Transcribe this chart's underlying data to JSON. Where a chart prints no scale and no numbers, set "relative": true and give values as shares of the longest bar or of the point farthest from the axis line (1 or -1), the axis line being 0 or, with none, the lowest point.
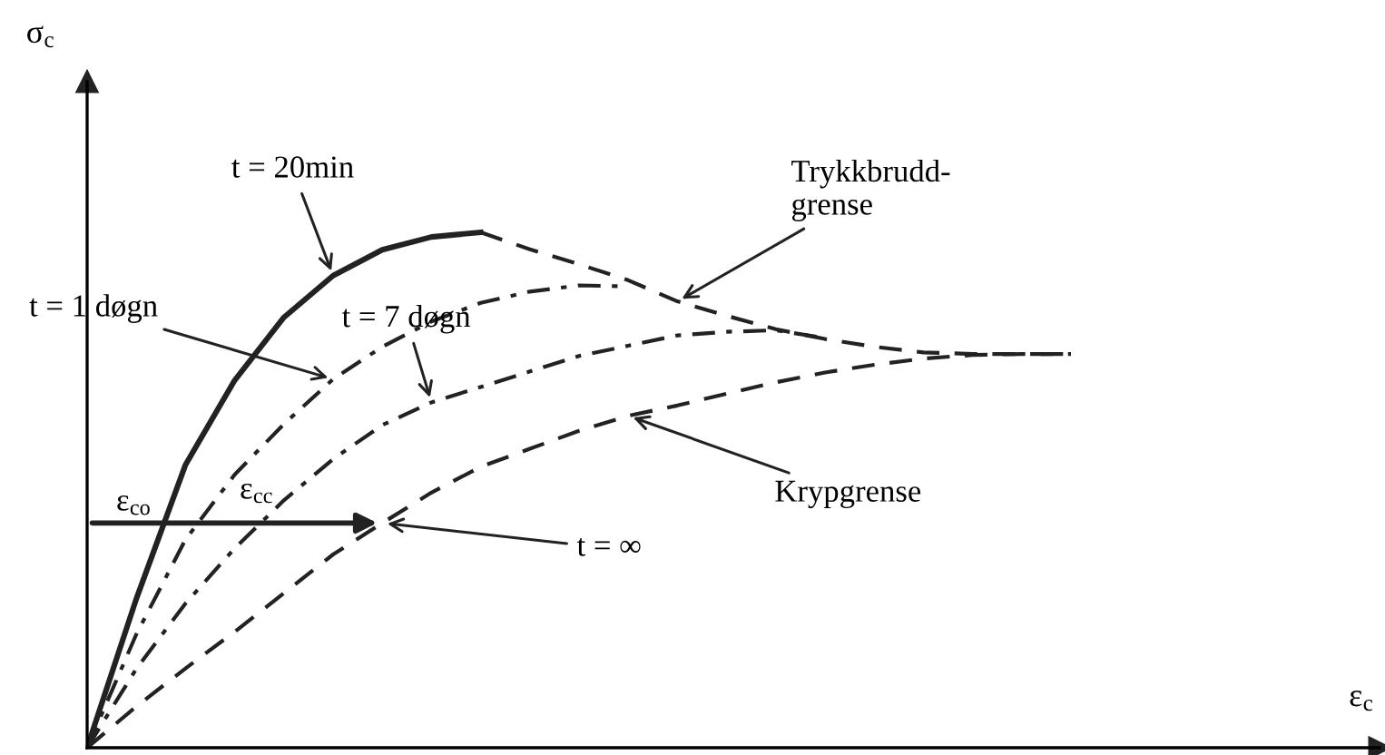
{
  "chart_data": {
    "type": "line",
    "relative": true,
    "marker": "none",
    "categories": [
      null,
      null,
      null,
      null,
      null,
      null,
      null,
      null,
      null,
      null,
      null,
      null,
      null,
      null,
      null,
      null,
      null,
      null,
      null,
      null,
      null
    ],
    "series": [
      {
        "color": "#222222",
        "line_style": "solid",
        "values": [
          0,
          0.289,
          0.549,
          0.713,
          0.835,
          0.916,
          0.966,
          0.991,
          1,
          null,
          null,
          null,
          null,
          null,
          null,
          null,
          null,
          null,
          null,
          null,
          null
        ]
      },
      {
        "color": "#222222",
        "line_style": "dashed",
        "values": [
          null,
          null,
          null,
          null,
          null,
          null,
          null,
          null,
          1,
          0.967,
          0.938,
          0.907,
          0.866,
          0.838,
          0.812,
          0.793,
          0.778,
          0.767,
          0.764,
          0.764,
          0.764
        ]
      },
      {
        "color": "#222222",
        "line_style": "dashdot",
        "values": [
          0,
          0.22,
          0.404,
          0.53,
          0.628,
          0.715,
          0.778,
          0.827,
          0.863,
          0.885,
          0.897,
          0.895,
          null,
          null,
          null,
          null,
          null,
          null,
          null,
          null,
          null
        ]
      },
      {
        "color": "#222222",
        "line_style": "dashdot",
        "values": [
          0,
          0.153,
          0.28,
          0.387,
          0.48,
          0.56,
          0.626,
          0.67,
          0.7,
          0.73,
          0.76,
          0.78,
          0.8,
          0.807,
          0.81,
          0.795,
          null,
          null,
          null,
          null,
          null
        ]
      },
      {
        "color": "#222222",
        "line_style": "dashed",
        "values": [
          0,
          0.08,
          0.154,
          0.225,
          0.3,
          0.375,
          0.436,
          0.495,
          0.545,
          0.58,
          0.615,
          0.644,
          0.664,
          0.687,
          0.709,
          0.728,
          0.743,
          0.755,
          0.762,
          0.764,
          0.764
        ]
      }
    ],
    "annotations": [
      "t = 20min",
      "t = 1 døgn",
      "t = 7 døgn",
      "Trykkbrudd-\ngrense",
      "Krypgrense",
      "t = ∞",
      "ε$_{co}$",
      "ε$_{cc}$",
      "σ$_{c}$",
      "ε$_{c}$"
    ]
  }
}
